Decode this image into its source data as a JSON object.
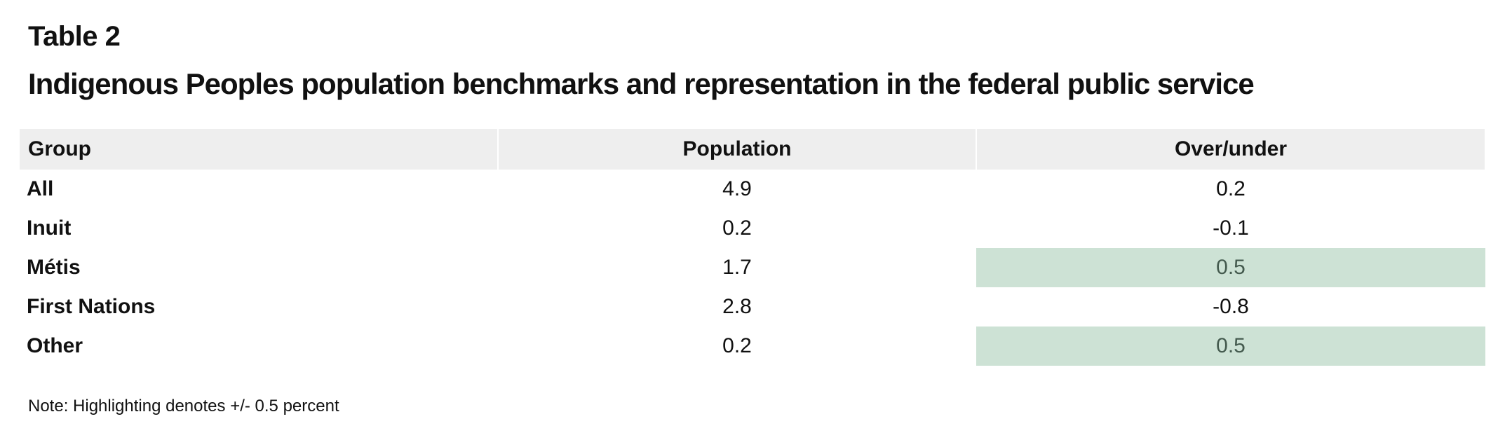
{
  "header": {
    "eyebrow": "Table 2",
    "title": "Indigenous Peoples population benchmarks and representation in the federal public service"
  },
  "table": {
    "columns": [
      "Group",
      "Population",
      "Over/under"
    ],
    "rows": [
      {
        "group": "All",
        "population": "4.9",
        "over_under": "0.2",
        "highlighted": false
      },
      {
        "group": "Inuit",
        "population": "0.2",
        "over_under": "-0.1",
        "highlighted": false
      },
      {
        "group": "Métis",
        "population": "1.7",
        "over_under": "0.5",
        "highlighted": true
      },
      {
        "group": "First Nations",
        "population": "2.8",
        "over_under": "-0.8",
        "highlighted": false
      },
      {
        "group": "Other",
        "population": "0.2",
        "over_under": "0.5",
        "highlighted": true
      }
    ],
    "highlight_color": "#cde2d5"
  },
  "footer": {
    "note": "Note: Highlighting denotes +/- 0.5 percent"
  }
}
